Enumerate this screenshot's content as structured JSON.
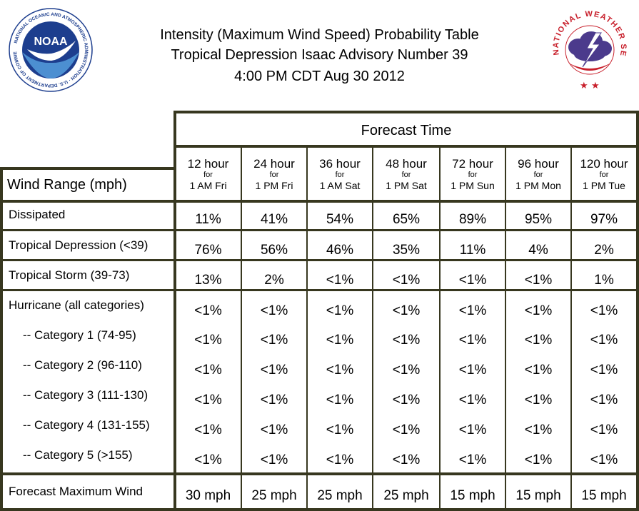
{
  "header": {
    "title_line1": "Intensity (Maximum Wind Speed) Probability Table",
    "title_line2": "Tropical Depression Isaac Advisory Number 39",
    "title_line3": "4:00 PM CDT Aug 30 2012"
  },
  "logos": {
    "noaa_text": "NOAA",
    "noaa_ring_text": "NATIONAL OCEANIC AND ATMOSPHERIC ADMINISTRATION · U.S. DEPARTMENT OF COMMERCE",
    "nws_ring_text": "NATIONAL WEATHER SERVICE"
  },
  "table": {
    "forecast_time_label": "Forecast Time",
    "wind_range_label": "Wind Range (mph)",
    "columns": [
      {
        "hour": "12 hour",
        "for": "for",
        "when": "1 AM Fri"
      },
      {
        "hour": "24 hour",
        "for": "for",
        "when": "1 PM Fri"
      },
      {
        "hour": "36 hour",
        "for": "for",
        "when": "1 AM Sat"
      },
      {
        "hour": "48 hour",
        "for": "for",
        "when": "1 PM Sat"
      },
      {
        "hour": "72 hour",
        "for": "for",
        "when": "1 PM Sun"
      },
      {
        "hour": "96 hour",
        "for": "for",
        "when": "1 PM Mon"
      },
      {
        "hour": "120 hour",
        "for": "for",
        "when": "1 PM Tue"
      }
    ],
    "rows": [
      {
        "label": "Dissipated",
        "values": [
          "11%",
          "41%",
          "54%",
          "65%",
          "89%",
          "95%",
          "97%"
        ]
      },
      {
        "label": "Tropical Depression (<39)",
        "values": [
          "76%",
          "56%",
          "46%",
          "35%",
          "11%",
          "4%",
          "2%"
        ]
      },
      {
        "label": "Tropical Storm (39-73)",
        "values": [
          "13%",
          "2%",
          "<1%",
          "<1%",
          "<1%",
          "<1%",
          "1%"
        ]
      },
      {
        "label": "Hurricane (all categories)",
        "values": [
          "<1%",
          "<1%",
          "<1%",
          "<1%",
          "<1%",
          "<1%",
          "<1%"
        ]
      },
      {
        "label": "-- Category 1 (74-95)",
        "values": [
          "<1%",
          "<1%",
          "<1%",
          "<1%",
          "<1%",
          "<1%",
          "<1%"
        ]
      },
      {
        "label": "-- Category 2 (96-110)",
        "values": [
          "<1%",
          "<1%",
          "<1%",
          "<1%",
          "<1%",
          "<1%",
          "<1%"
        ]
      },
      {
        "label": "-- Category 3 (111-130)",
        "values": [
          "<1%",
          "<1%",
          "<1%",
          "<1%",
          "<1%",
          "<1%",
          "<1%"
        ]
      },
      {
        "label": "-- Category 4 (131-155)",
        "values": [
          "<1%",
          "<1%",
          "<1%",
          "<1%",
          "<1%",
          "<1%",
          "<1%"
        ]
      },
      {
        "label": "-- Category 5 (>155)",
        "values": [
          "<1%",
          "<1%",
          "<1%",
          "<1%",
          "<1%",
          "<1%",
          "<1%"
        ]
      }
    ],
    "max_wind": {
      "label": "Forecast Maximum Wind",
      "values": [
        "30 mph",
        "25 mph",
        "25 mph",
        "25 mph",
        "15 mph",
        "15 mph",
        "15 mph"
      ]
    }
  },
  "colors": {
    "border": "#37371f",
    "noaa_blue": "#1d3e8e",
    "noaa_light_blue": "#4c8fd1",
    "nws_red": "#c8202c",
    "nws_purple": "#4b3a8c"
  }
}
